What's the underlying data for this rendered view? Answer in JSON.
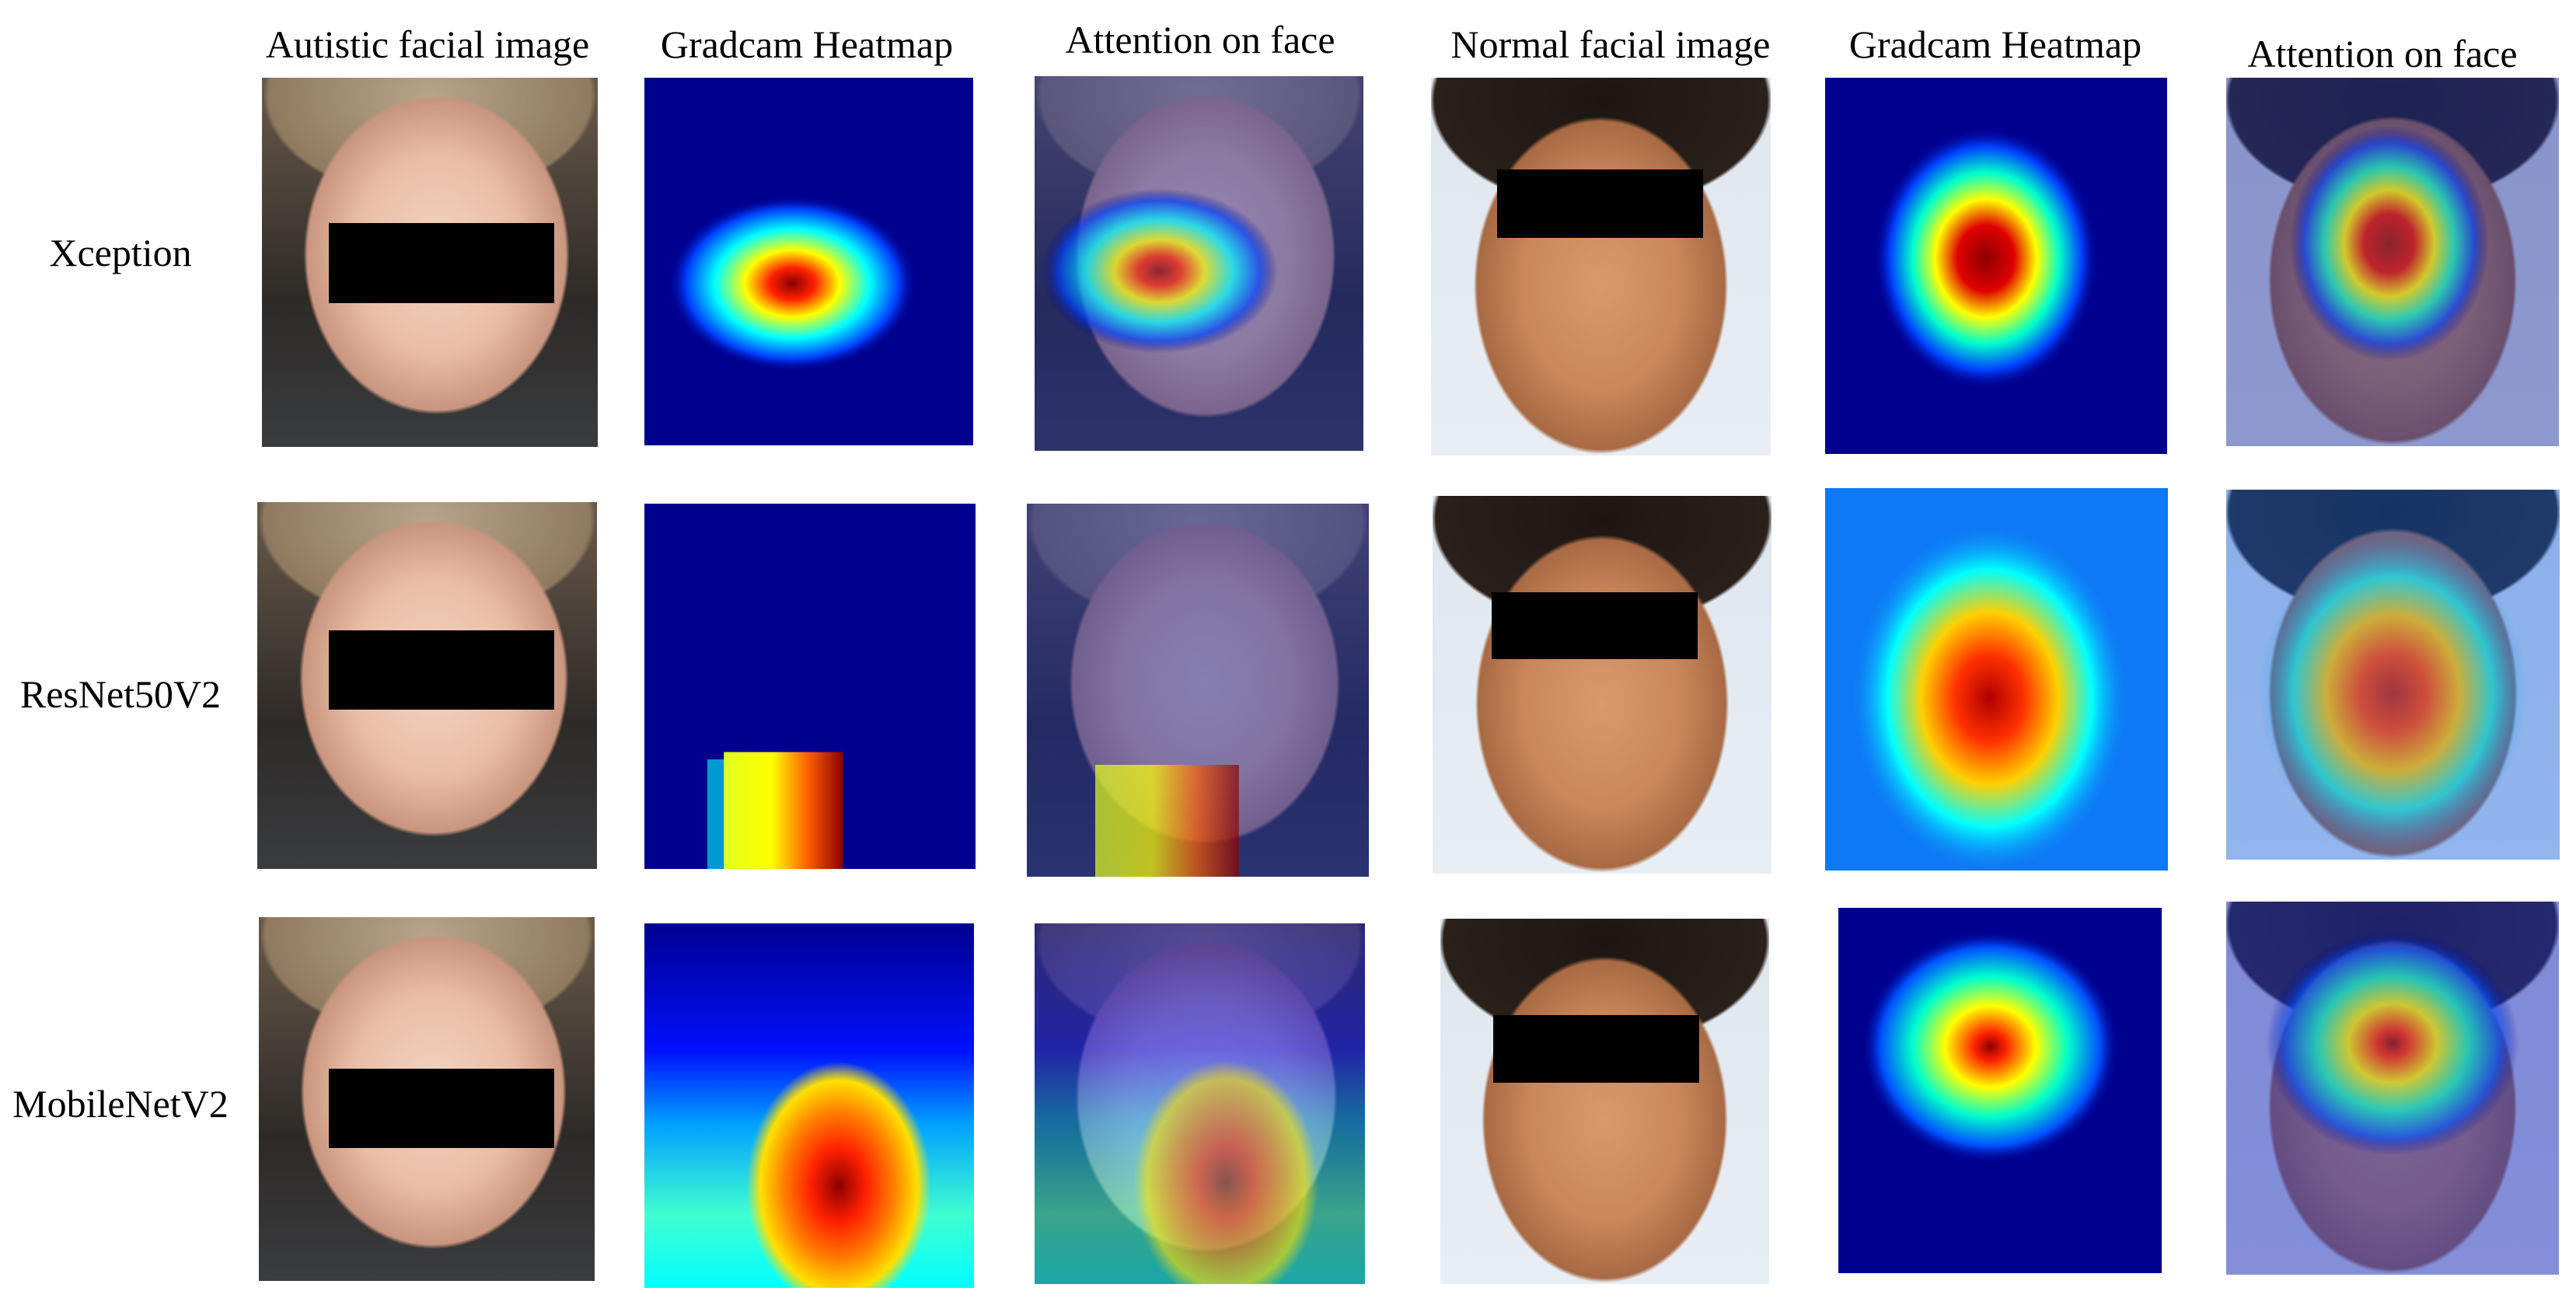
{
  "columns": [
    "Autistic facial image",
    "Gradcam Heatmap",
    "Attention on face",
    "Normal facial image",
    "Gradcam Heatmap",
    "Attention on face"
  ],
  "rows": [
    "Xception",
    "ResNet50V2",
    "MobileNetV2"
  ],
  "panels": {
    "face_child": "face-image",
    "face_boy": "face-image",
    "heatmap": "gradcam-heatmap",
    "overlay": "attention-overlay"
  },
  "colors": {
    "heat_low": "#00008f",
    "heat_mid": "#00ffff",
    "heat_warm": "#ffff00",
    "heat_high": "#ff2000",
    "heat_peak": "#8b0000"
  }
}
